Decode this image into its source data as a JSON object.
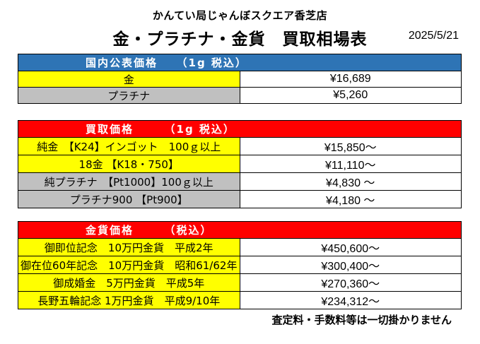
{
  "header": {
    "store_name": "かんてい局じゃんぼスクエア香芝店",
    "title": "金・プラチナ・金貨　買取相場表",
    "date": "2025/5/21"
  },
  "public_prices": {
    "heading": "国内公表価格　　（1g 税込）",
    "rows": [
      {
        "name": "金",
        "price": "¥16,689",
        "color": "yellow"
      },
      {
        "name": "プラチナ",
        "price": "¥5,260",
        "color": "gray"
      }
    ]
  },
  "buy_prices": {
    "heading": "買取価格　　　（1g 税込）",
    "rows": [
      {
        "name": "純金　【K24】インゴット　100ｇ以上",
        "price": "¥15,850～",
        "color": "yellow"
      },
      {
        "name": "18金 【K18・750】",
        "price": "¥11,110～",
        "color": "yellow"
      },
      {
        "name": "純プラチナ　【Pt1000】100ｇ以上",
        "price": "¥4,830 ～",
        "color": "gray"
      },
      {
        "name": "プラチナ900 【Pt900】",
        "price": "¥4,180 ～",
        "color": "gray"
      }
    ]
  },
  "coin_prices": {
    "heading": "金貨価格　　　（税込）",
    "rows": [
      {
        "name": "御即位記念　10万円金貨　平成2年",
        "price": "¥450,600～",
        "color": "yellow"
      },
      {
        "name": "御在位60年記念　10万円金貨　昭和61/62年",
        "price": "¥300,400～",
        "color": "yellow"
      },
      {
        "name": "御成婚金　5万円金貨　平成5年",
        "price": "¥270,360～",
        "color": "yellow"
      },
      {
        "name": "長野五輪記念 1万円金貨　平成9/10年",
        "price": "¥234,312～",
        "color": "yellow"
      }
    ]
  },
  "footer": {
    "note": "査定料・手数料等は一切掛かりません"
  },
  "colors": {
    "blue_header": "#2e74b5",
    "red_header": "#ff0000",
    "gold_cell": "#ffff00",
    "platinum_cell": "#c0c0c0"
  }
}
